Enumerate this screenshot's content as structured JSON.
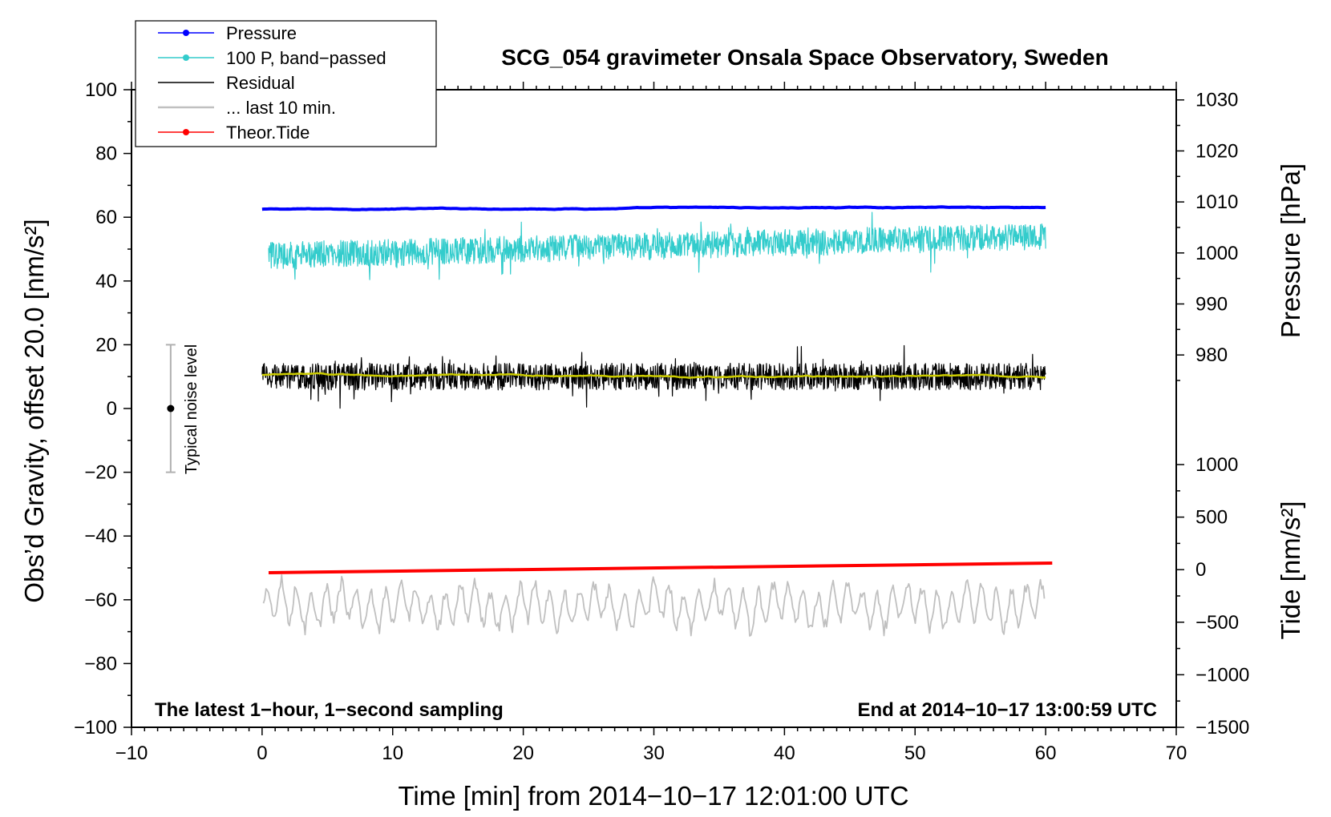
{
  "chart_data": {
    "type": "line",
    "title": "SCG_054 gravimeter Onsala Space Observatory, Sweden",
    "xlabel": "Time [min] from 2014−10−17 12:01:00 UTC",
    "ylabel_left": "Obs’d Gravity, offset 20.0 [nm/s²]",
    "ylabel_right_top": "Pressure [hPa]",
    "ylabel_right_bottom": "Tide [nm/s²]",
    "xlim": [
      -10,
      70
    ],
    "ylim": [
      -100,
      100
    ],
    "pressure_axis_range": [
      975,
      1032
    ],
    "tide_axis_range": [
      -1500,
      1000
    ],
    "x_ticks": [
      "−10",
      "0",
      "10",
      "20",
      "30",
      "40",
      "50",
      "60",
      "70"
    ],
    "y_ticks": [
      "100",
      "80",
      "60",
      "40",
      "20",
      "0",
      "−20",
      "−40",
      "−60",
      "−80",
      "−100"
    ],
    "pressure_ticks": [
      "1030",
      "1020",
      "1010",
      "1000",
      "990",
      "980"
    ],
    "tide_ticks": [
      "1000",
      "500",
      "0",
      "−500",
      "−1000",
      "−1500"
    ],
    "annotations": {
      "bottom_left": "The latest 1−hour, 1−second sampling",
      "bottom_right": "End at 2014−10−17 13:00:59 UTC",
      "noise_label": "Typical noise level"
    },
    "noise_bar": {
      "x": -7,
      "center": 0,
      "half_range": 20
    },
    "legend": [
      {
        "name": "Pressure",
        "color": "#0000ff",
        "marker": true
      },
      {
        "name": "100 P, band−passed",
        "color": "#33cccc",
        "marker": true
      },
      {
        "name": "Residual",
        "color": "#000000",
        "marker": false
      },
      {
        "name": "... last 10 min.",
        "color": "#c0c0c0",
        "marker": false
      },
      {
        "name": "Theor.Tide",
        "color": "#ff0000",
        "marker": true
      }
    ],
    "series": [
      {
        "name": "Pressure",
        "color": "#0000ff",
        "x_range": [
          0,
          60
        ],
        "level_start": 62.5,
        "level_end": 63.2,
        "noise_amp": 0.3,
        "stroke": 4
      },
      {
        "name": "100 P, band−passed",
        "color": "#33cccc",
        "x_range": [
          0.5,
          60
        ],
        "level_start": 48,
        "level_end": 54,
        "noise_amp": 6,
        "stroke": 1.2
      },
      {
        "name": "Residual",
        "color": "#000000",
        "x_range": [
          0,
          60
        ],
        "level_start": 10,
        "level_end": 10,
        "noise_amp": 6,
        "stroke": 1.2
      },
      {
        "name": "Residual smoothed",
        "color": "#cccc00",
        "x_range": [
          0,
          60
        ],
        "level_start": 10.5,
        "level_end": 10,
        "noise_amp": 0.6,
        "stroke": 2.5
      },
      {
        "name": "... last 10 min.",
        "color": "#c0c0c0",
        "x_range": [
          0.1,
          59.9
        ],
        "level_start": -62,
        "level_end": -62,
        "noise_amp": 6,
        "stroke": 1.8
      },
      {
        "name": "Theor.Tide",
        "color": "#ff0000",
        "x_range": [
          0.5,
          60.5
        ],
        "level_start": -51.5,
        "level_end": -48.5,
        "noise_amp": 0,
        "stroke": 4
      }
    ]
  }
}
